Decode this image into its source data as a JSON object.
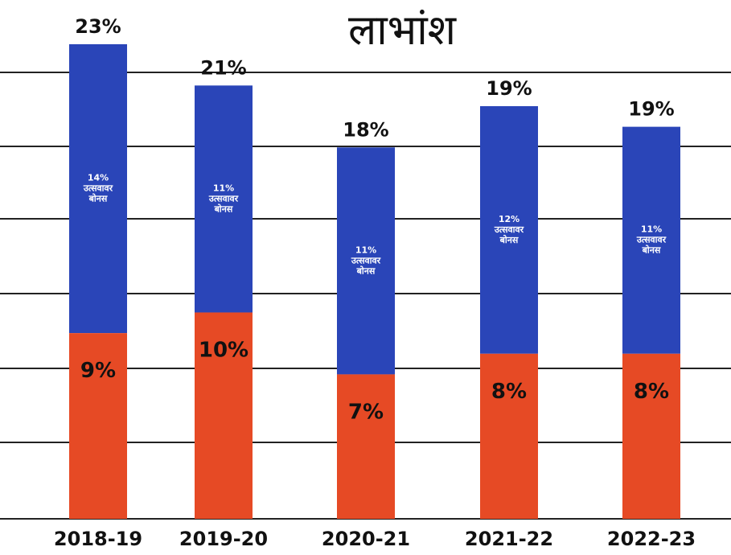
{
  "chart_data": {
    "type": "bar",
    "stacked": true,
    "title": "लाभांश",
    "categories": [
      "2018-19",
      "2019-20",
      "2020-21",
      "2021-22",
      "2022-23"
    ],
    "totals": [
      "23%",
      "21%",
      "18%",
      "19%",
      "19%"
    ],
    "series": [
      {
        "values": [
          9,
          10,
          7,
          8,
          8
        ],
        "labels": [
          "9%",
          "10%",
          "7%",
          "8%",
          "8%"
        ],
        "color": "#e64a25"
      },
      {
        "values": [
          14,
          11,
          11,
          12,
          11
        ],
        "labels": [
          "14%",
          "11%",
          "11%",
          "12%",
          "11%"
        ],
        "sublabel_line1": "उत्सवावर",
        "sublabel_line2": "बोनस",
        "color": "#2a45b8"
      }
    ],
    "ylim": [
      0,
      23
    ],
    "grid": true
  }
}
